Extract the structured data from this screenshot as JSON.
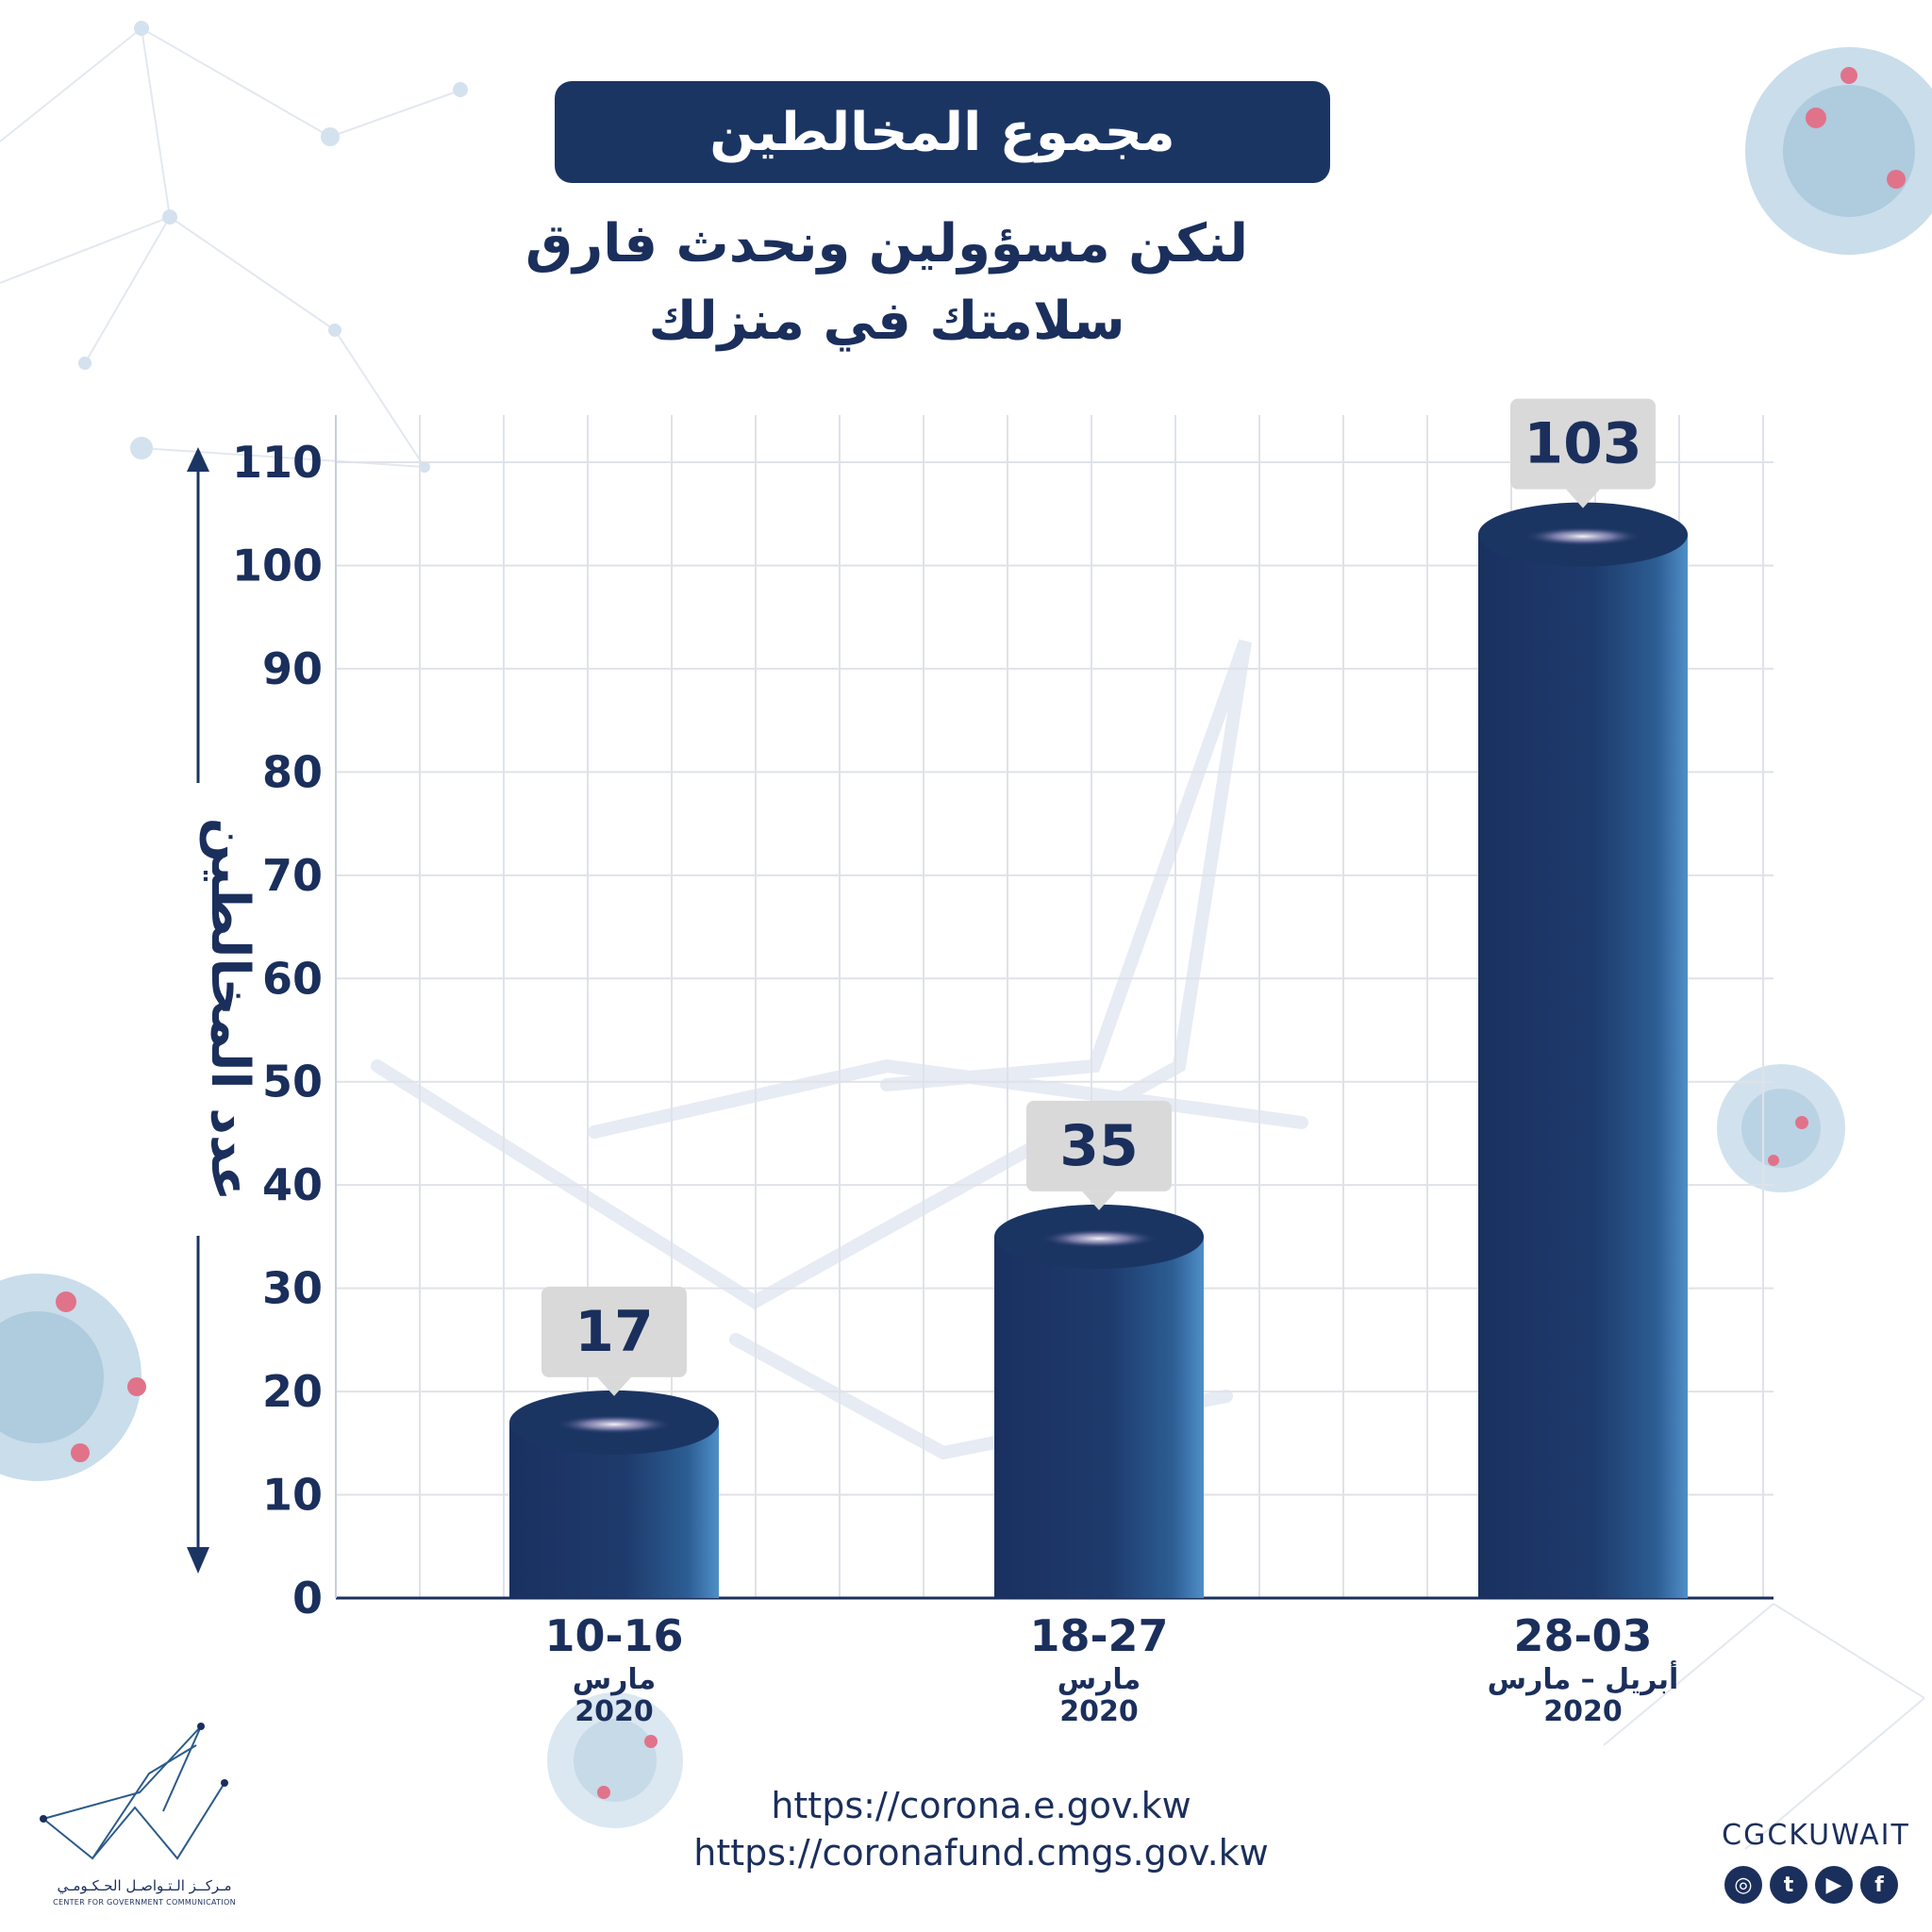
{
  "header": {
    "title": "مجموع المخالطين",
    "subtitle_line1": "لنكن مسؤولين ونحدث فارق",
    "subtitle_line2": "سلامتك في منزلك"
  },
  "chart_data": {
    "type": "bar",
    "title": "مجموع المخالطين",
    "ylabel": "عدد المخالطين",
    "xlabel": "",
    "ylim": [
      0,
      110
    ],
    "yticks": [
      0,
      10,
      20,
      30,
      40,
      50,
      60,
      70,
      80,
      90,
      100,
      110
    ],
    "grid": true,
    "categories": [
      {
        "range": "10-16",
        "month": "مارس",
        "year": "2020"
      },
      {
        "range": "18-27",
        "month": "مارس",
        "year": "2020"
      },
      {
        "range": "28-03",
        "month": "أبريل – مارس",
        "year": "2020"
      }
    ],
    "values": [
      17,
      35,
      103
    ],
    "data_labels": [
      "17",
      "35",
      "103"
    ],
    "bar_color": "#1b3563",
    "label_box_color": "#d9d9d9"
  },
  "footer": {
    "link1": "https://corona.e.gov.kw",
    "link2": "https://coronafund.cmgs.gov.kw",
    "handle": "CGCKUWAIT",
    "social_icons": [
      "instagram-icon",
      "twitter-icon",
      "youtube-icon",
      "facebook-icon"
    ],
    "logo_ar": "مـركــز الـتـواصـل الحـكـومـي",
    "logo_en": "CENTER FOR GOVERNMENT COMMUNICATION"
  },
  "colors": {
    "navy": "#1b3563",
    "text": "#1b2f5c",
    "grid": "#d9dce3",
    "virus": "#a9c7db",
    "virus_spot": "#e0738a"
  }
}
